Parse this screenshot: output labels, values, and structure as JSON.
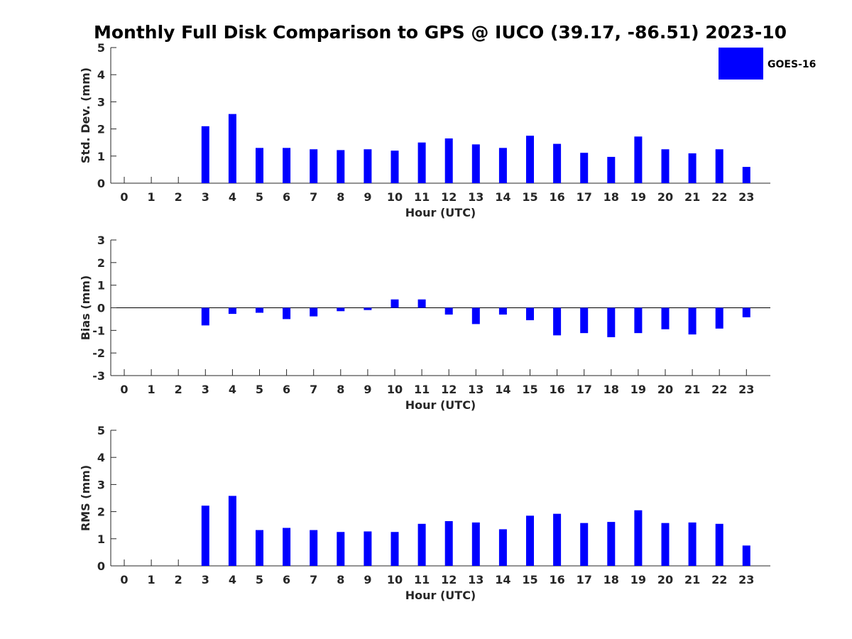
{
  "chart_data": {
    "type": "bar",
    "title": "Monthly Full Disk Comparison to GPS @ IUCO (39.17, -86.51) 2023-10",
    "legend": {
      "label": "GOES-16",
      "placement": "top-right",
      "color": "#0000ff"
    },
    "categories": [
      "0",
      "1",
      "2",
      "3",
      "4",
      "5",
      "6",
      "7",
      "8",
      "9",
      "10",
      "11",
      "12",
      "13",
      "14",
      "15",
      "16",
      "17",
      "18",
      "19",
      "20",
      "21",
      "22",
      "23"
    ],
    "panels": [
      {
        "ylabel": "Std. Dev. (mm)",
        "xlabel": "Hour (UTC)",
        "ylim": [
          0,
          5
        ],
        "yticks": [
          0,
          1,
          2,
          3,
          4,
          5
        ],
        "series": [
          {
            "name": "GOES-16",
            "values": [
              null,
              null,
              null,
              2.1,
              2.55,
              1.3,
              1.3,
              1.25,
              1.22,
              1.25,
              1.2,
              1.5,
              1.65,
              1.43,
              1.3,
              1.75,
              1.45,
              1.12,
              0.97,
              1.72,
              1.25,
              1.1,
              1.25,
              0.6
            ]
          }
        ]
      },
      {
        "ylabel": "Bias (mm)",
        "xlabel": "Hour (UTC)",
        "ylim": [
          -3,
          3
        ],
        "yticks": [
          -3,
          -2,
          -1,
          0,
          1,
          2,
          3
        ],
        "series": [
          {
            "name": "GOES-16",
            "values": [
              null,
              null,
              null,
              -0.78,
              -0.27,
              -0.22,
              -0.5,
              -0.38,
              -0.15,
              -0.1,
              0.37,
              0.37,
              -0.3,
              -0.72,
              -0.3,
              -0.55,
              -1.22,
              -1.12,
              -1.3,
              -1.12,
              -0.95,
              -1.18,
              -0.92,
              -0.42
            ]
          }
        ]
      },
      {
        "ylabel": "RMS (mm)",
        "xlabel": "Hour (UTC)",
        "ylim": [
          0,
          5
        ],
        "yticks": [
          0,
          1,
          2,
          3,
          4,
          5
        ],
        "series": [
          {
            "name": "GOES-16",
            "values": [
              null,
              null,
              null,
              2.22,
              2.58,
              1.32,
              1.4,
              1.32,
              1.25,
              1.27,
              1.25,
              1.55,
              1.65,
              1.6,
              1.35,
              1.85,
              1.92,
              1.58,
              1.62,
              2.05,
              1.58,
              1.6,
              1.55,
              0.75
            ]
          }
        ]
      }
    ]
  }
}
